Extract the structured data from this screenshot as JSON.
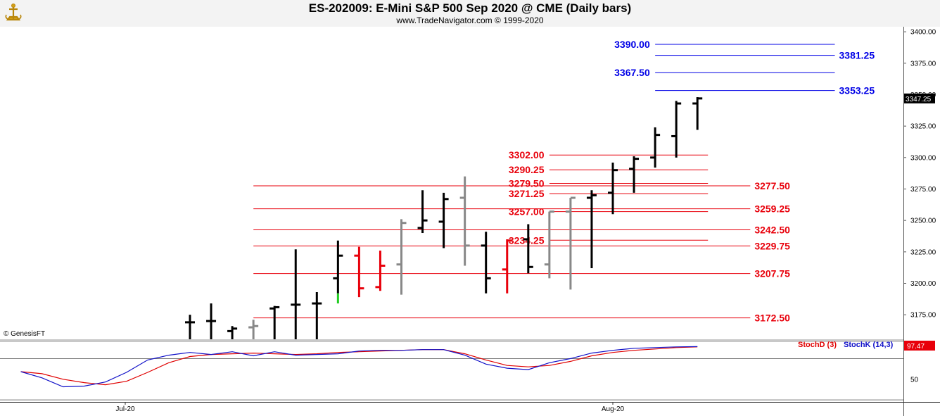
{
  "header": {
    "title": "ES-202009:  E-Mini S&P 500 Sep 2020 @ CME  (Daily bars)",
    "website": "www.TradeNavigator.com © 1999-2020"
  },
  "copyright": "© GenesisFT",
  "colors": {
    "up": "#000000",
    "inside": "#888888",
    "down": "#e8000b",
    "green": "#22cc22",
    "target": "#0000e6",
    "support": "#e8000b",
    "stoch_d": "#e00000",
    "stoch_k": "#1010c8"
  },
  "chart_data": [
    {
      "type": "ohlc",
      "x_labels": [
        "Jul-20",
        "Aug-20"
      ],
      "y_ticks": [
        "3400.00",
        "3375.00",
        "3350.00",
        "3325.00",
        "3300.00",
        "3275.00",
        "3250.00",
        "3225.00",
        "3200.00",
        "3175.00"
      ],
      "ylim": [
        3155.5,
        3404
      ],
      "last_price": "3347.25",
      "bars": [
        {
          "i": 0,
          "o": 3169,
          "h": 3175,
          "l": 3152,
          "c": 3169,
          "color": "up"
        },
        {
          "i": 1,
          "o": 3170,
          "h": 3184,
          "l": 3152,
          "c": 3170,
          "color": "up"
        },
        {
          "i": 2,
          "o": 3162,
          "h": 3166,
          "l": 3152,
          "c": 3164,
          "color": "up"
        },
        {
          "i": 3,
          "o": 3165,
          "h": 3171,
          "l": 3152,
          "c": 3166,
          "color": "inside"
        },
        {
          "i": 4,
          "o": 3180,
          "h": 3182,
          "l": 3152,
          "c": 3181,
          "color": "up"
        },
        {
          "i": 5,
          "o": 3183,
          "h": 3227,
          "l": 3152,
          "c": 3183,
          "color": "up"
        },
        {
          "i": 6,
          "o": 3184,
          "h": 3193,
          "l": 3152,
          "c": 3184,
          "color": "up"
        },
        {
          "i": 7,
          "o": 3204,
          "h": 3234,
          "l": 3192,
          "c": 3222,
          "color": "up",
          "low_tail": 3184
        },
        {
          "i": 8,
          "o": 3222,
          "h": 3229,
          "l": 3189,
          "c": 3196,
          "color": "down"
        },
        {
          "i": 9,
          "o": 3197,
          "h": 3226,
          "l": 3194,
          "c": 3214,
          "color": "down"
        },
        {
          "i": 10,
          "o": 3215,
          "h": 3251,
          "l": 3191,
          "c": 3248,
          "color": "inside"
        },
        {
          "i": 11,
          "o": 3244,
          "h": 3274,
          "l": 3240,
          "c": 3250,
          "color": "up"
        },
        {
          "i": 12,
          "o": 3249,
          "h": 3272,
          "l": 3228,
          "c": 3267,
          "color": "up"
        },
        {
          "i": 13,
          "o": 3268,
          "h": 3285,
          "l": 3214,
          "c": 3230,
          "color": "inside"
        },
        {
          "i": 14,
          "o": 3230,
          "h": 3241,
          "l": 3192,
          "c": 3204,
          "color": "up"
        },
        {
          "i": 15,
          "o": 3211,
          "h": 3235,
          "l": 3192,
          "c": 3234,
          "color": "down"
        },
        {
          "i": 16,
          "o": 3235,
          "h": 3247,
          "l": 3208,
          "c": 3213,
          "color": "up"
        },
        {
          "i": 17,
          "o": 3215,
          "h": 3257,
          "l": 3204,
          "c": 3257,
          "color": "inside"
        },
        {
          "i": 18,
          "o": 3257,
          "h": 3268,
          "l": 3195,
          "c": 3268,
          "color": "inside"
        },
        {
          "i": 19,
          "o": 3268,
          "h": 3274,
          "l": 3212,
          "c": 3270,
          "color": "up"
        },
        {
          "i": 20,
          "o": 3272,
          "h": 3296,
          "l": 3255,
          "c": 3290,
          "color": "up"
        },
        {
          "i": 21,
          "o": 3291,
          "h": 3301,
          "l": 3272,
          "c": 3299,
          "color": "up"
        },
        {
          "i": 22,
          "o": 3300,
          "h": 3324,
          "l": 3292,
          "c": 3318,
          "color": "up"
        },
        {
          "i": 23,
          "o": 3317,
          "h": 3345,
          "l": 3300,
          "c": 3343,
          "color": "up"
        },
        {
          "i": 24,
          "o": 3343,
          "h": 3348,
          "l": 3322,
          "c": 3347,
          "color": "up"
        }
      ],
      "targets": [
        {
          "label": "3390.00",
          "value": 3390.0,
          "from_i": 23,
          "to_i": 30.5,
          "label_side": "left"
        },
        {
          "label": "3381.25",
          "value": 3381.25,
          "from_i": 23,
          "to_i": 30.5,
          "label_side": "right"
        },
        {
          "label": "3367.50",
          "value": 3367.5,
          "from_i": 23,
          "to_i": 30.5,
          "label_side": "left"
        },
        {
          "label": "3353.25",
          "value": 3353.25,
          "from_i": 23,
          "to_i": 30.5,
          "label_side": "right"
        }
      ],
      "levels": [
        {
          "label": "3302.00",
          "value": 3302.0,
          "from_i": 18,
          "to_i": 24.5,
          "label_side": "left"
        },
        {
          "label": "3290.25",
          "value": 3290.25,
          "from_i": 18,
          "to_i": 24.5,
          "label_side": "left"
        },
        {
          "label": "3279.50",
          "value": 3279.5,
          "from_i": 18,
          "to_i": 24.5,
          "label_side": "left"
        },
        {
          "label": "3277.50",
          "value": 3277.5,
          "from_i": 4,
          "to_i": 26.5,
          "label_side": "right"
        },
        {
          "label": "3271.25",
          "value": 3271.25,
          "from_i": 18,
          "to_i": 24.5,
          "label_side": "left"
        },
        {
          "label": "3259.25",
          "value": 3259.25,
          "from_i": 4,
          "to_i": 26.5,
          "label_side": "right"
        },
        {
          "label": "3257.00",
          "value": 3257.0,
          "from_i": 18,
          "to_i": 24.5,
          "label_side": "left"
        },
        {
          "label": "3242.50",
          "value": 3242.5,
          "from_i": 4,
          "to_i": 26.5,
          "label_side": "right"
        },
        {
          "label": "3234.25",
          "value": 3234.25,
          "from_i": 18,
          "to_i": 24.5,
          "label_side": "left"
        },
        {
          "label": "3229.75",
          "value": 3229.75,
          "from_i": 4,
          "to_i": 26.5,
          "label_side": "right"
        },
        {
          "label": "3207.75",
          "value": 3207.75,
          "from_i": 4,
          "to_i": 26.5,
          "label_side": "right"
        },
        {
          "label": "3172.50",
          "value": 3172.5,
          "from_i": 4,
          "to_i": 26.5,
          "label_side": "right"
        }
      ]
    },
    {
      "type": "line",
      "y_ticks": [
        "50"
      ],
      "ylim": [
        17,
        104
      ],
      "last_value": "97.47",
      "series": [
        {
          "name": "StochD (3)",
          "color_key": "stoch_d",
          "x": [
            -8,
            -7,
            -6,
            -5,
            -4,
            -3,
            -2,
            -1,
            0,
            1,
            2,
            3,
            4,
            5,
            6,
            7,
            8,
            9,
            10,
            11,
            12,
            13,
            14,
            15,
            16,
            17,
            18,
            19,
            20,
            21,
            22,
            23,
            24
          ],
          "y": [
            61,
            58,
            50,
            45,
            42,
            47,
            60,
            74,
            83,
            86,
            87,
            88,
            87,
            86,
            87,
            89,
            90,
            91,
            92,
            93,
            93,
            87,
            78,
            70,
            68,
            70,
            76,
            84,
            89,
            92,
            94,
            96,
            97
          ]
        },
        {
          "name": "StochK (14,3)",
          "color_key": "stoch_k",
          "x": [
            -8,
            -7,
            -6,
            -5,
            -4,
            -3,
            -2,
            -1,
            0,
            1,
            2,
            3,
            4,
            5,
            6,
            7,
            8,
            9,
            10,
            11,
            12,
            13,
            14,
            15,
            16,
            17,
            18,
            19,
            20,
            21,
            22,
            23,
            24
          ],
          "y": [
            61,
            52,
            39,
            40,
            46,
            60,
            78,
            85,
            89,
            86,
            90,
            84,
            90,
            85,
            86,
            87,
            91,
            92,
            92,
            93,
            93,
            85,
            72,
            66,
            64,
            74,
            80,
            88,
            92,
            95,
            96,
            97,
            97.47
          ]
        }
      ]
    }
  ]
}
